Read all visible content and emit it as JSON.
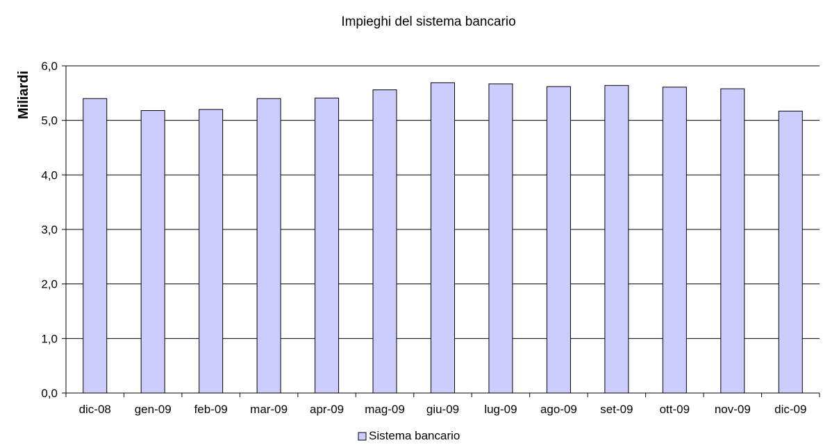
{
  "chart_data": {
    "type": "bar",
    "title": "Impieghi del sistema bancario",
    "xlabel": "",
    "ylabel": "Miliardi",
    "categories": [
      "dic-08",
      "gen-09",
      "feb-09",
      "mar-09",
      "apr-09",
      "mag-09",
      "giu-09",
      "lug-09",
      "ago-09",
      "set-09",
      "ott-09",
      "nov-09",
      "dic-09"
    ],
    "series": [
      {
        "name": "Sistema bancario",
        "values": [
          5.4,
          5.18,
          5.2,
          5.4,
          5.41,
          5.56,
          5.69,
          5.67,
          5.62,
          5.64,
          5.61,
          5.58,
          5.17
        ],
        "color": "#ccccff",
        "stroke": "#000000"
      }
    ],
    "ylim": [
      0,
      6
    ],
    "y_ticks": [
      "0,0",
      "1,0",
      "2,0",
      "3,0",
      "4,0",
      "5,0",
      "6,0"
    ],
    "grid": true,
    "legend_position": "bottom"
  }
}
